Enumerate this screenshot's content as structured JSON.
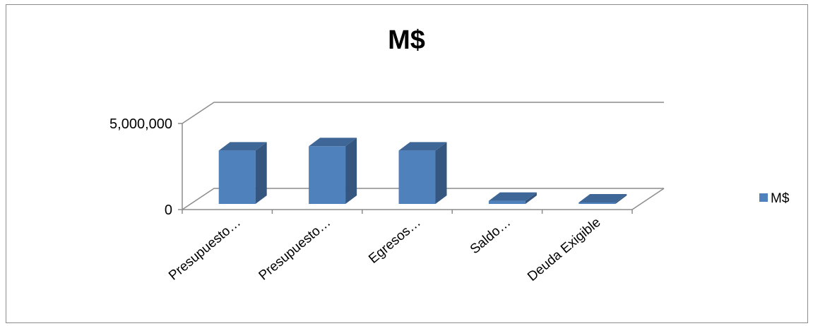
{
  "chart_data": {
    "type": "bar",
    "title": "M$",
    "categories": [
      "Presupuesto…",
      "Presupuesto…",
      "Egresos…",
      "Saldo…",
      "Deuda Exigible"
    ],
    "series": [
      {
        "name": "M$",
        "values": [
          3100000,
          3350000,
          3100000,
          180000,
          30000
        ],
        "color": "#4f81bd"
      }
    ],
    "y_ticks": [
      "0",
      "5,000,000"
    ],
    "ylim": [
      0,
      5000000
    ],
    "legend": "right",
    "grid": true,
    "style": "3d-column"
  }
}
